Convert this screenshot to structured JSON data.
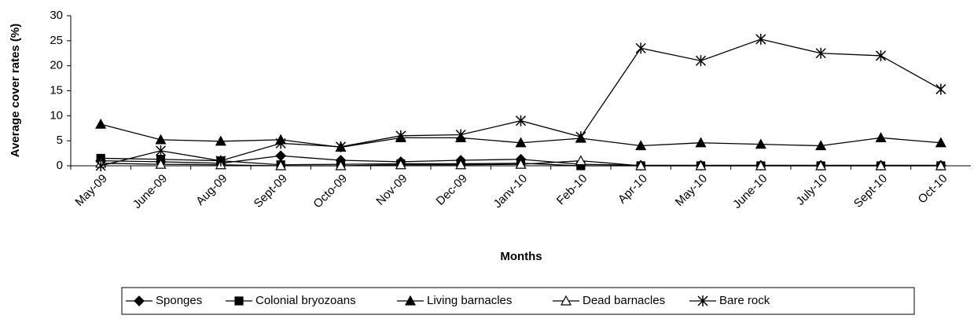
{
  "chart_data": {
    "type": "line",
    "x_label": "Months",
    "y_label": "Average cover rates (%)",
    "categories": [
      "May-09",
      "June-09",
      "Aug-09",
      "Sept-09",
      "Octo-09",
      "Nov-09",
      "Dec-09",
      "Janv-10",
      "Feb-10",
      "Apr-10",
      "May-10",
      "June-10",
      "July-10",
      "Sept-10",
      "Oct-10"
    ],
    "series": [
      {
        "name": "Sponges",
        "color": "#000000",
        "marker": "diamond",
        "values": [
          1,
          0.8,
          0.5,
          2,
          1.1,
          0.8,
          1.1,
          1.3,
          0.3,
          0.1,
          0.1,
          0.1,
          0.1,
          0.1,
          0.1
        ]
      },
      {
        "name": "Colonial bryozoans",
        "color": "#000000",
        "marker": "square",
        "values": [
          1.5,
          1.3,
          1,
          0.2,
          0.3,
          0.4,
          0.4,
          0.5,
          0,
          0,
          0,
          0,
          0,
          0,
          0
        ]
      },
      {
        "name": "Living barnacles",
        "color": "#000000",
        "marker": "triangle",
        "values": [
          8.3,
          5.2,
          4.9,
          5.2,
          3.7,
          5.6,
          5.6,
          4.6,
          5.5,
          4,
          4.6,
          4.3,
          4,
          5.6,
          4.6
        ]
      },
      {
        "name": "Dead barnacles",
        "color": "#000000",
        "marker": "open-triangle",
        "values": [
          0.5,
          0.3,
          0.2,
          0,
          0,
          0.2,
          0.2,
          0.3,
          1,
          0,
          0,
          0,
          0,
          0,
          0
        ]
      },
      {
        "name": "Bare rock",
        "color": "#000000",
        "marker": "asterisk",
        "values": [
          0,
          3,
          1,
          4.5,
          3.8,
          6,
          6.2,
          9,
          5.8,
          23.5,
          21,
          25.3,
          22.5,
          22,
          15.3
        ]
      }
    ],
    "ylim": [
      0,
      30
    ],
    "yticks": [
      0,
      5,
      10,
      15,
      20,
      25,
      30
    ],
    "grid": false,
    "legend": "bottom"
  }
}
